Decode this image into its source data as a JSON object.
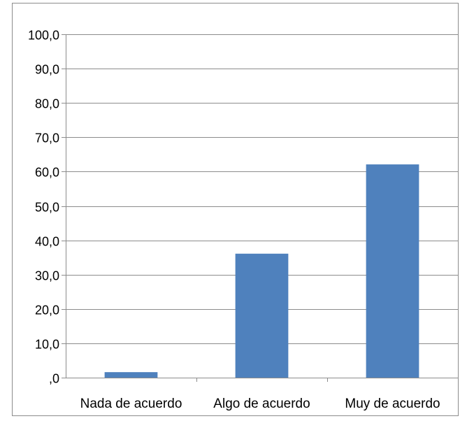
{
  "chart_data": {
    "type": "bar",
    "title": "",
    "xlabel": "",
    "ylabel": "",
    "categories": [
      "Nada de acuerdo",
      "Algo de acuerdo",
      "Muy de acuerdo"
    ],
    "values": [
      1.6,
      36.1,
      62.1
    ],
    "ylim": [
      0,
      100
    ],
    "y_ticks": [
      0,
      10,
      20,
      30,
      40,
      50,
      60,
      70,
      80,
      90,
      100
    ],
    "y_tick_labels": [
      ",0",
      "10,0",
      "20,0",
      "30,0",
      "40,0",
      "50,0",
      "60,0",
      "70,0",
      "80,0",
      "90,0",
      "100,0"
    ],
    "grid": true,
    "legend": "none",
    "bar_color": "#4f81bd",
    "grid_color": "#8c8c8c",
    "frame_color": "#8c8c8c"
  }
}
